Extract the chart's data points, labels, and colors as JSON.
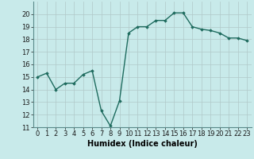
{
  "x": [
    0,
    1,
    2,
    3,
    4,
    5,
    6,
    7,
    8,
    9,
    10,
    11,
    12,
    13,
    14,
    15,
    16,
    17,
    18,
    19,
    20,
    21,
    22,
    23
  ],
  "y": [
    15.0,
    15.3,
    14.0,
    14.5,
    14.5,
    15.2,
    15.5,
    12.3,
    11.1,
    13.1,
    18.5,
    19.0,
    19.0,
    19.5,
    19.5,
    20.1,
    20.1,
    19.0,
    18.8,
    18.7,
    18.5,
    18.1,
    18.1,
    17.9
  ],
  "xlabel": "Humidex (Indice chaleur)",
  "ylim": [
    11,
    21
  ],
  "xlim": [
    -0.5,
    23.5
  ],
  "yticks": [
    11,
    12,
    13,
    14,
    15,
    16,
    17,
    18,
    19,
    20
  ],
  "xticks": [
    0,
    1,
    2,
    3,
    4,
    5,
    6,
    7,
    8,
    9,
    10,
    11,
    12,
    13,
    14,
    15,
    16,
    17,
    18,
    19,
    20,
    21,
    22,
    23
  ],
  "xtick_labels": [
    "0",
    "1",
    "2",
    "3",
    "4",
    "5",
    "6",
    "7",
    "8",
    "9",
    "10",
    "11",
    "12",
    "13",
    "14",
    "15",
    "16",
    "17",
    "18",
    "19",
    "20",
    "21",
    "22",
    "23"
  ],
  "line_color": "#1e6b5e",
  "marker": "D",
  "marker_size": 1.8,
  "bg_color": "#c8eaea",
  "grid_color": "#b0c8c8",
  "xlabel_fontsize": 7,
  "tick_fontsize": 6,
  "line_width": 1.0
}
